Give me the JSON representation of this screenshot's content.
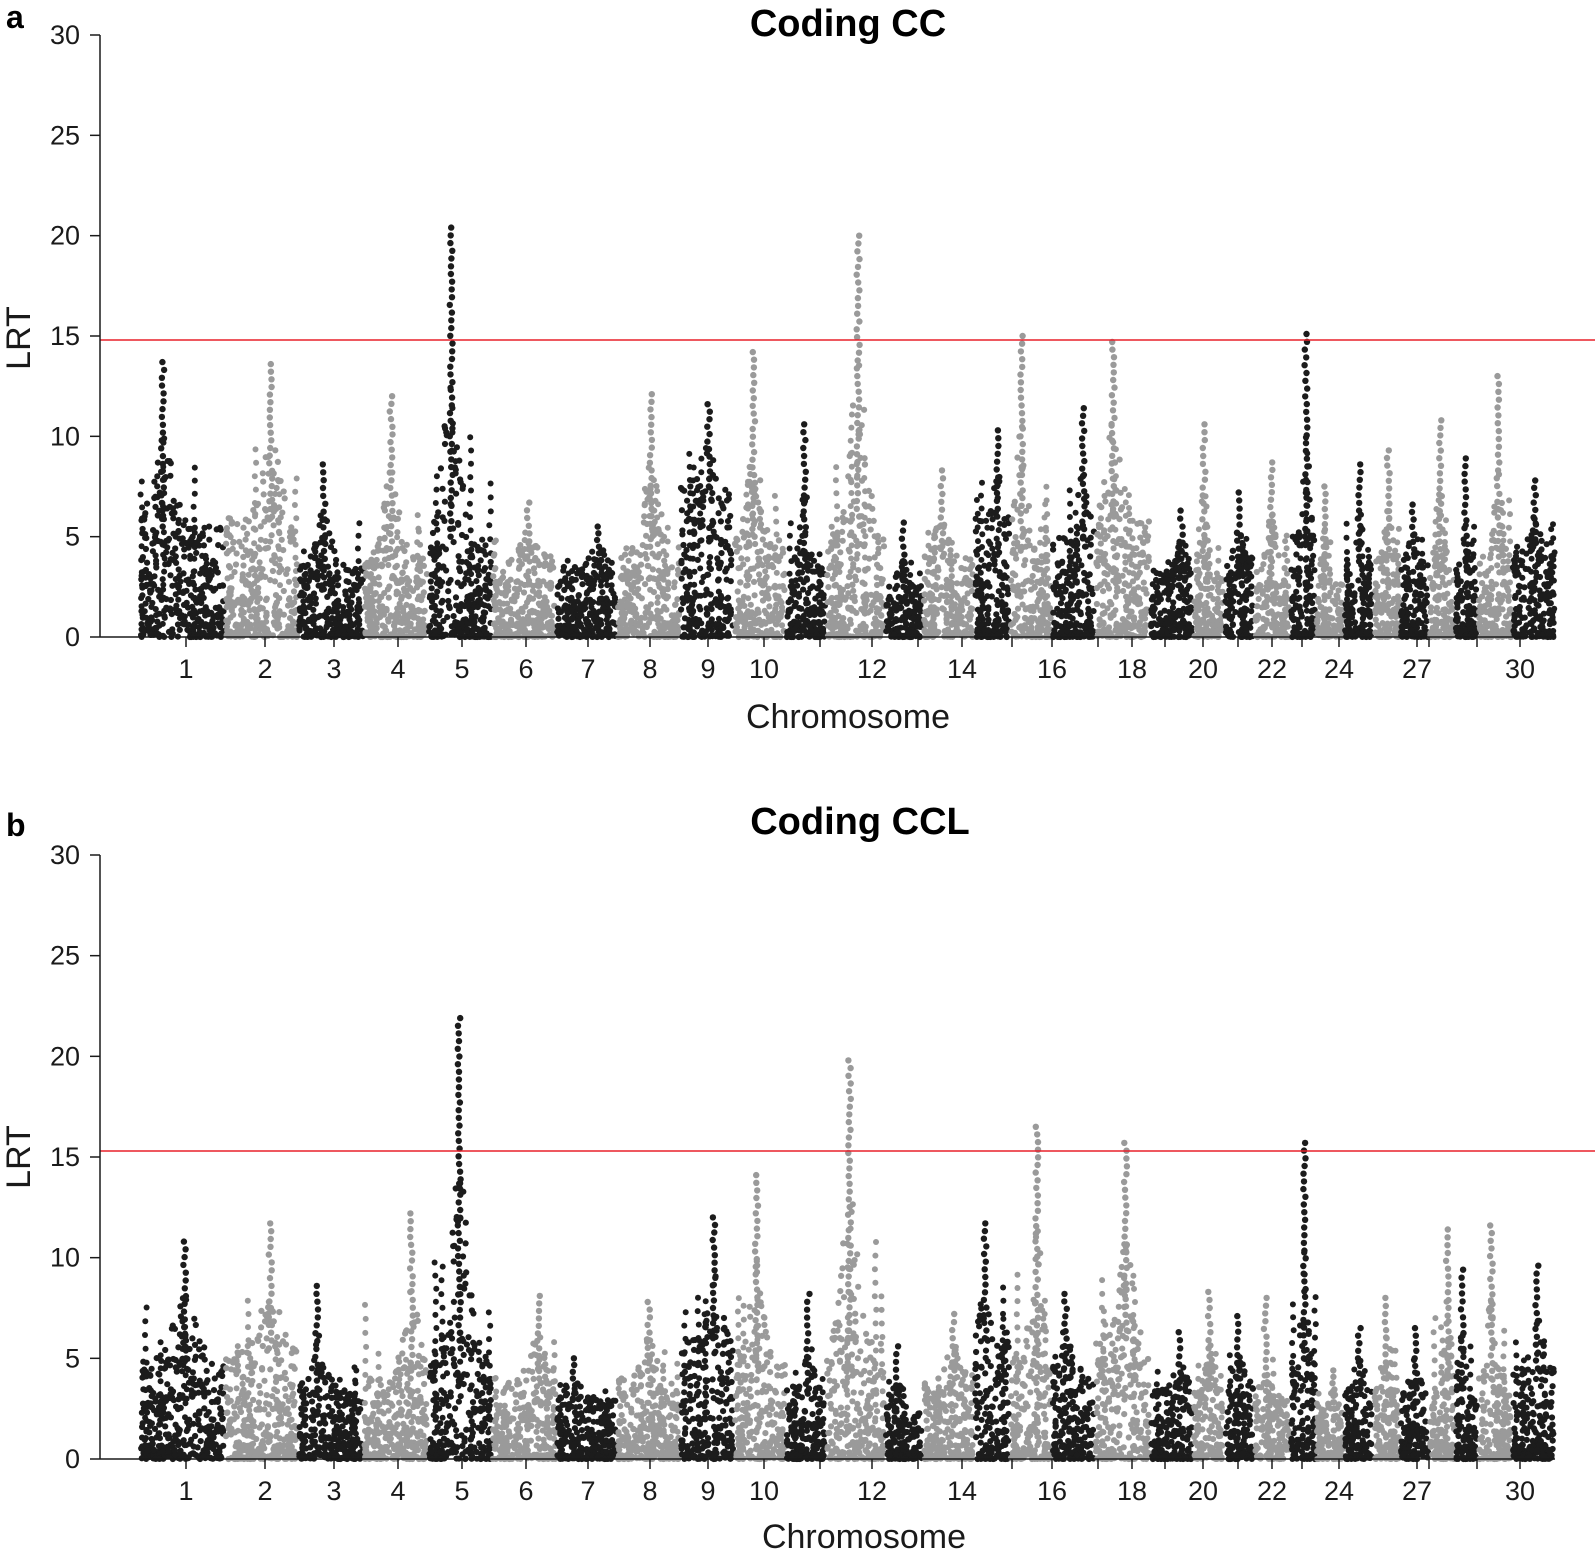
{
  "chart_data": [
    {
      "type": "scatter",
      "panel": "a",
      "title": "Coding CC",
      "xlabel": "Chromosome",
      "ylabel": "LRT",
      "ylim": [
        0,
        30
      ],
      "yticks": [
        0,
        5,
        10,
        15,
        20,
        25,
        30
      ],
      "threshold": 14.8,
      "threshold_color": "#e8202a",
      "colors": [
        "#1c1c1c",
        "#9a9a9a"
      ],
      "chromosome_tick_labels": [
        "1",
        "2",
        "3",
        "4",
        "5",
        "6",
        "7",
        "8",
        "9",
        "10",
        "12",
        "14",
        "16",
        "18",
        "20",
        "22",
        "24",
        "27",
        "30"
      ],
      "chromosomes": [
        {
          "chr": 1,
          "max_lrt": 13.7,
          "bg": 5.5
        },
        {
          "chr": 2,
          "max_lrt": 13.6,
          "bg": 6.0
        },
        {
          "chr": 3,
          "max_lrt": 8.6,
          "bg": 3.5
        },
        {
          "chr": 4,
          "max_lrt": 12.0,
          "bg": 4.0
        },
        {
          "chr": 5,
          "max_lrt": 20.4,
          "bg": 5.0
        },
        {
          "chr": 6,
          "max_lrt": 6.7,
          "bg": 4.0
        },
        {
          "chr": 7,
          "max_lrt": 5.5,
          "bg": 3.5
        },
        {
          "chr": 8,
          "max_lrt": 12.1,
          "bg": 4.5
        },
        {
          "chr": 9,
          "max_lrt": 11.6,
          "bg": 7.5
        },
        {
          "chr": 10,
          "max_lrt": 14.2,
          "bg": 5.0
        },
        {
          "chr": 11,
          "max_lrt": 10.6,
          "bg": 3.5
        },
        {
          "chr": 12,
          "max_lrt": 20.0,
          "bg": 6.0
        },
        {
          "chr": 13,
          "max_lrt": 5.7,
          "bg": 2.5
        },
        {
          "chr": 14,
          "max_lrt": 8.3,
          "bg": 4.0
        },
        {
          "chr": 15,
          "max_lrt": 10.3,
          "bg": 6.0
        },
        {
          "chr": 16,
          "max_lrt": 15.0,
          "bg": 5.0
        },
        {
          "chr": 17,
          "max_lrt": 11.4,
          "bg": 5.0
        },
        {
          "chr": 18,
          "max_lrt": 14.7,
          "bg": 6.0
        },
        {
          "chr": 19,
          "max_lrt": 6.3,
          "bg": 3.5
        },
        {
          "chr": 20,
          "max_lrt": 10.6,
          "bg": 3.5
        },
        {
          "chr": 21,
          "max_lrt": 7.2,
          "bg": 4.0
        },
        {
          "chr": 22,
          "max_lrt": 8.7,
          "bg": 3.5
        },
        {
          "chr": 23,
          "max_lrt": 15.1,
          "bg": 5.0
        },
        {
          "chr": 24,
          "max_lrt": 7.5,
          "bg": 3.0
        },
        {
          "chr": 25,
          "max_lrt": 8.6,
          "bg": 4.0
        },
        {
          "chr": 26,
          "max_lrt": 9.3,
          "bg": 4.0
        },
        {
          "chr": 27,
          "max_lrt": 6.6,
          "bg": 4.0
        },
        {
          "chr": 28,
          "max_lrt": 10.8,
          "bg": 4.0
        },
        {
          "chr": 29,
          "max_lrt": 8.9,
          "bg": 3.5
        },
        {
          "chr": 30,
          "max_lrt": 13.0,
          "bg": 4.0
        },
        {
          "chr": 31,
          "max_lrt": 7.8,
          "bg": 4.5
        }
      ]
    },
    {
      "type": "scatter",
      "panel": "b",
      "title": "Coding CCL",
      "xlabel": "Chromosome",
      "ylabel": "LRT",
      "ylim": [
        0,
        30
      ],
      "yticks": [
        0,
        5,
        10,
        15,
        20,
        25,
        30
      ],
      "threshold": 15.3,
      "threshold_color": "#e8202a",
      "colors": [
        "#1c1c1c",
        "#9a9a9a"
      ],
      "chromosome_tick_labels": [
        "1",
        "2",
        "3",
        "4",
        "5",
        "6",
        "7",
        "8",
        "9",
        "10",
        "12",
        "14",
        "16",
        "18",
        "20",
        "22",
        "24",
        "27",
        "30"
      ],
      "chromosomes": [
        {
          "chr": 1,
          "max_lrt": 10.8,
          "bg": 5.0
        },
        {
          "chr": 2,
          "max_lrt": 11.7,
          "bg": 5.5
        },
        {
          "chr": 3,
          "max_lrt": 8.6,
          "bg": 3.5
        },
        {
          "chr": 4,
          "max_lrt": 12.2,
          "bg": 4.0
        },
        {
          "chr": 5,
          "max_lrt": 21.9,
          "bg": 5.5
        },
        {
          "chr": 6,
          "max_lrt": 8.1,
          "bg": 4.0
        },
        {
          "chr": 7,
          "max_lrt": 5.0,
          "bg": 3.0
        },
        {
          "chr": 8,
          "max_lrt": 7.8,
          "bg": 4.0
        },
        {
          "chr": 9,
          "max_lrt": 12.0,
          "bg": 6.0
        },
        {
          "chr": 10,
          "max_lrt": 14.1,
          "bg": 5.0
        },
        {
          "chr": 11,
          "max_lrt": 8.2,
          "bg": 3.5
        },
        {
          "chr": 12,
          "max_lrt": 19.8,
          "bg": 6.0
        },
        {
          "chr": 13,
          "max_lrt": 5.6,
          "bg": 2.5
        },
        {
          "chr": 14,
          "max_lrt": 7.2,
          "bg": 4.0
        },
        {
          "chr": 15,
          "max_lrt": 11.7,
          "bg": 6.0
        },
        {
          "chr": 16,
          "max_lrt": 16.5,
          "bg": 5.5
        },
        {
          "chr": 17,
          "max_lrt": 8.2,
          "bg": 4.5
        },
        {
          "chr": 18,
          "max_lrt": 15.7,
          "bg": 6.0
        },
        {
          "chr": 19,
          "max_lrt": 6.3,
          "bg": 3.5
        },
        {
          "chr": 20,
          "max_lrt": 8.3,
          "bg": 3.5
        },
        {
          "chr": 21,
          "max_lrt": 7.1,
          "bg": 4.0
        },
        {
          "chr": 22,
          "max_lrt": 8.0,
          "bg": 3.0
        },
        {
          "chr": 23,
          "max_lrt": 15.7,
          "bg": 5.0
        },
        {
          "chr": 24,
          "max_lrt": 4.4,
          "bg": 2.5
        },
        {
          "chr": 25,
          "max_lrt": 6.5,
          "bg": 3.5
        },
        {
          "chr": 26,
          "max_lrt": 8.0,
          "bg": 4.0
        },
        {
          "chr": 27,
          "max_lrt": 6.5,
          "bg": 3.5
        },
        {
          "chr": 28,
          "max_lrt": 11.4,
          "bg": 4.0
        },
        {
          "chr": 29,
          "max_lrt": 9.4,
          "bg": 3.5
        },
        {
          "chr": 30,
          "max_lrt": 11.6,
          "bg": 4.0
        },
        {
          "chr": 31,
          "max_lrt": 9.6,
          "bg": 4.5
        }
      ]
    }
  ]
}
